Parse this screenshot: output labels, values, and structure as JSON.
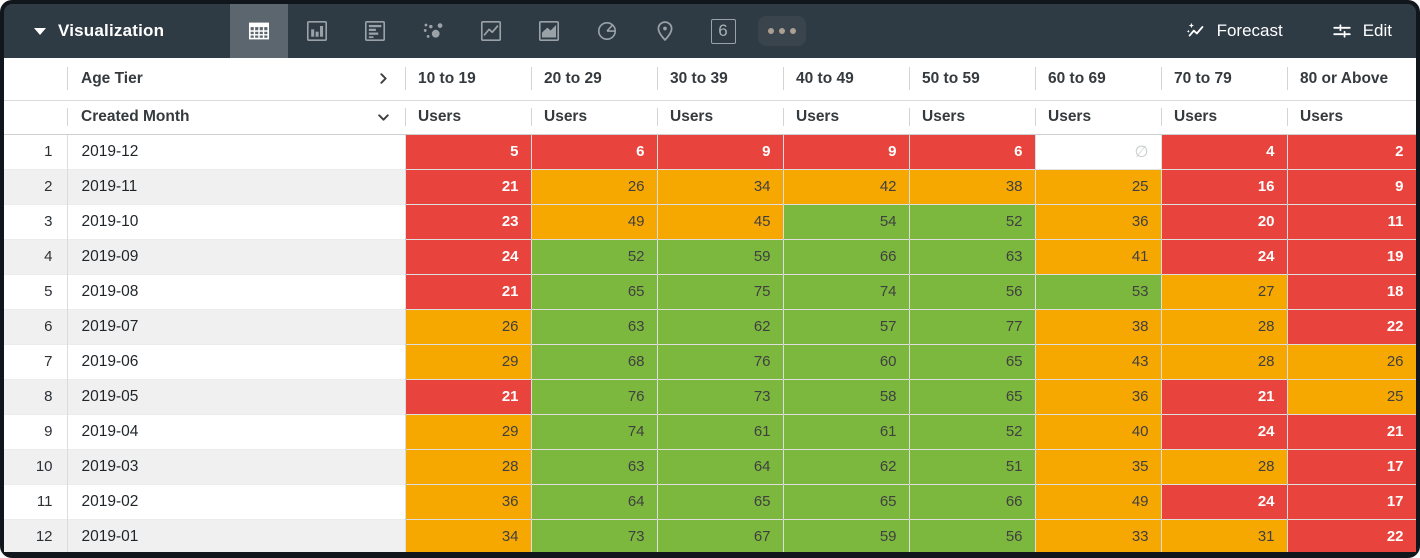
{
  "toolbar": {
    "title": "Visualization",
    "selected_tab": "table",
    "tabs": [
      "table",
      "bar-chart",
      "horizontal-bar-chart",
      "scatter-plot",
      "line-chart",
      "area-chart",
      "pie-chart",
      "map",
      "single-value",
      "more"
    ],
    "single_value_icon_text": "6",
    "forecast_label": "Forecast",
    "edit_label": "Edit"
  },
  "table": {
    "pivot_header": "Age Tier",
    "row_header": "Created Month",
    "measure_label": "Users",
    "columns": [
      "10 to 19",
      "20 to 29",
      "30 to 39",
      "40 to 49",
      "50 to 59",
      "60 to 69",
      "70 to 79",
      "80 or Above"
    ],
    "null_symbol": "∅",
    "rows": [
      {
        "index": "1",
        "month": "2019-12",
        "values": [
          5,
          6,
          9,
          9,
          6,
          null,
          4,
          2
        ]
      },
      {
        "index": "2",
        "month": "2019-11",
        "values": [
          21,
          26,
          34,
          42,
          38,
          25,
          16,
          9
        ]
      },
      {
        "index": "3",
        "month": "2019-10",
        "values": [
          23,
          49,
          45,
          54,
          52,
          36,
          20,
          11
        ]
      },
      {
        "index": "4",
        "month": "2019-09",
        "values": [
          24,
          52,
          59,
          66,
          63,
          41,
          24,
          19
        ]
      },
      {
        "index": "5",
        "month": "2019-08",
        "values": [
          21,
          65,
          75,
          74,
          56,
          53,
          27,
          18
        ]
      },
      {
        "index": "6",
        "month": "2019-07",
        "values": [
          26,
          63,
          62,
          57,
          77,
          38,
          28,
          22
        ]
      },
      {
        "index": "7",
        "month": "2019-06",
        "values": [
          29,
          68,
          76,
          60,
          65,
          43,
          28,
          26
        ]
      },
      {
        "index": "8",
        "month": "2019-05",
        "values": [
          21,
          76,
          73,
          58,
          65,
          36,
          21,
          25
        ]
      },
      {
        "index": "9",
        "month": "2019-04",
        "values": [
          29,
          74,
          61,
          61,
          52,
          40,
          24,
          21
        ]
      },
      {
        "index": "10",
        "month": "2019-03",
        "values": [
          28,
          63,
          64,
          62,
          51,
          35,
          28,
          17
        ]
      },
      {
        "index": "11",
        "month": "2019-02",
        "values": [
          36,
          64,
          65,
          65,
          66,
          49,
          24,
          17
        ]
      },
      {
        "index": "12",
        "month": "2019-01",
        "values": [
          34,
          73,
          67,
          59,
          56,
          33,
          31,
          22
        ]
      }
    ]
  },
  "heatmap": {
    "red": "#e8433c",
    "orange": "#f7a800",
    "green": "#7cb83e",
    "red_text": "#ffffff",
    "dark_text": "#404040",
    "null_bg": "#ffffff",
    "null_text": "#c9ccce",
    "red_if_lte": 24,
    "orange_if_lte": 49
  }
}
